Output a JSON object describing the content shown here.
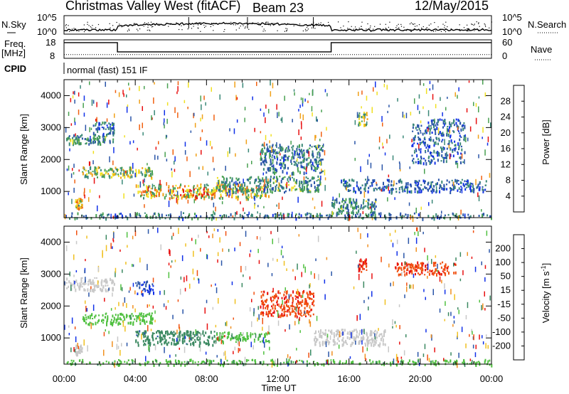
{
  "header": {
    "title": "Christmas Valley West (fitACF)",
    "beam": "Beam 23",
    "date": "12/May/2015"
  },
  "noise_panel": {
    "left_label": "N.Sky",
    "right_label": "N.Search",
    "left_ticks": [
      "10^5",
      "10^0"
    ],
    "right_ticks": [
      "10^5",
      "10^0"
    ]
  },
  "freq_panel": {
    "left_label_1": "Freq.",
    "left_label_2": "[MHz]",
    "right_label": "Nave",
    "left_ticks": [
      "18",
      "8"
    ],
    "right_ticks": [
      "60",
      "0"
    ],
    "freq_steps": [
      {
        "start": "00:00",
        "end": "03:00",
        "mhz": 16.5
      },
      {
        "start": "03:00",
        "end": "15:00",
        "mhz": 11.5
      },
      {
        "start": "15:00",
        "end": "24:00",
        "mhz": 16.5
      }
    ],
    "nave_level": 12
  },
  "cpid": {
    "label": "CPID",
    "program": "normal (fast) 151 IF"
  },
  "x_axis": {
    "label": "Time UT",
    "ticks": [
      "00:00",
      "04:00",
      "08:00",
      "12:00",
      "16:00",
      "20:00",
      "00:00"
    ]
  },
  "colors": {
    "power": [
      "#1030e8",
      "#2a55a8",
      "#3a8878",
      "#48a050",
      "#f0e020",
      "#f0a018",
      "#f06010",
      "#e81010"
    ],
    "velocity": [
      "#1030e8",
      "#2a55a8",
      "#3a8860",
      "#50c040",
      "#c8c8c8",
      "#f0c020",
      "#f09020",
      "#f05010",
      "#e81010"
    ]
  },
  "chart_data": [
    {
      "type": "heatmap",
      "name_printed": "",
      "xlabel": "",
      "ylabel": "Slant Range [km]",
      "x_unit": "hours UT",
      "xlim": [
        0,
        24
      ],
      "ylim": [
        180,
        4500
      ],
      "yticks": [
        1000,
        2000,
        3000,
        4000
      ],
      "colorbar": {
        "label": "Power [dB]",
        "ticks": [
          "28",
          "24",
          "20",
          "16",
          "12",
          "8",
          "4"
        ],
        "range": [
          0,
          30
        ]
      },
      "features": [
        {
          "t": [
            0.0,
            2.8
          ],
          "r": [
            2500,
            2800
          ],
          "value": 10
        },
        {
          "t": [
            1.6,
            2.8
          ],
          "r": [
            2800,
            3200
          ],
          "value": 7
        },
        {
          "t": [
            0.6,
            1.0
          ],
          "r": [
            500,
            800
          ],
          "value": 18
        },
        {
          "t": [
            1.0,
            5.0
          ],
          "r": [
            1450,
            1800
          ],
          "value": 14
        },
        {
          "t": [
            4.0,
            11.5
          ],
          "r": [
            800,
            1250
          ],
          "value": 18
        },
        {
          "t": [
            6.5,
            8.5
          ],
          "r": [
            850,
            1100
          ],
          "value": 22
        },
        {
          "t": [
            8.5,
            14.5
          ],
          "r": [
            1000,
            1500
          ],
          "value": 10
        },
        {
          "t": [
            11.0,
            14.5
          ],
          "r": [
            1600,
            2500
          ],
          "value": 8
        },
        {
          "t": [
            15.5,
            23.8
          ],
          "r": [
            1000,
            1400
          ],
          "value": 6
        },
        {
          "t": [
            15.0,
            17.5
          ],
          "r": [
            300,
            800
          ],
          "value": 10
        },
        {
          "t": [
            16.5,
            17.0
          ],
          "r": [
            3100,
            3500
          ],
          "value": 14
        },
        {
          "t": [
            19.5,
            22.5
          ],
          "r": [
            1900,
            3300
          ],
          "value": 6
        },
        {
          "t": [
            0.0,
            24.0
          ],
          "r": [
            180,
            350
          ],
          "value": 8
        }
      ]
    },
    {
      "type": "heatmap",
      "name_printed": "",
      "xlabel": "Time UT",
      "ylabel": "Slant Range [km]",
      "x_unit": "hours UT",
      "xlim": [
        0,
        24
      ],
      "ylim": [
        180,
        4500
      ],
      "yticks": [
        1000,
        2000,
        3000,
        4000
      ],
      "colorbar": {
        "label": "Velocity [m s^-1]",
        "ticks": [
          "200",
          "100",
          "50",
          "15",
          "-15",
          "-50",
          "-100",
          "-200"
        ],
        "range": [
          -250,
          250
        ]
      },
      "features": [
        {
          "t": [
            0.0,
            2.8
          ],
          "r": [
            2500,
            2900
          ],
          "value": 0
        },
        {
          "t": [
            0.6,
            1.0
          ],
          "r": [
            500,
            800
          ],
          "value": 0
        },
        {
          "t": [
            1.0,
            5.0
          ],
          "r": [
            1450,
            1800
          ],
          "value": 30
        },
        {
          "t": [
            4.0,
            8.5
          ],
          "r": [
            800,
            1250
          ],
          "value": 80
        },
        {
          "t": [
            8.5,
            11.5
          ],
          "r": [
            900,
            1200
          ],
          "value": 40
        },
        {
          "t": [
            4.0,
            5.0
          ],
          "r": [
            2400,
            2800
          ],
          "value": 200
        },
        {
          "t": [
            11.0,
            14.0
          ],
          "r": [
            1700,
            2500
          ],
          "value": -180
        },
        {
          "t": [
            14.0,
            18.0
          ],
          "r": [
            800,
            1300
          ],
          "value": 0
        },
        {
          "t": [
            16.5,
            17.0
          ],
          "r": [
            3100,
            3500
          ],
          "value": -200
        },
        {
          "t": [
            18.5,
            22.0
          ],
          "r": [
            3000,
            3400
          ],
          "value": -180
        },
        {
          "t": [
            0.0,
            24.0
          ],
          "r": [
            180,
            350
          ],
          "value": 40
        }
      ]
    }
  ]
}
